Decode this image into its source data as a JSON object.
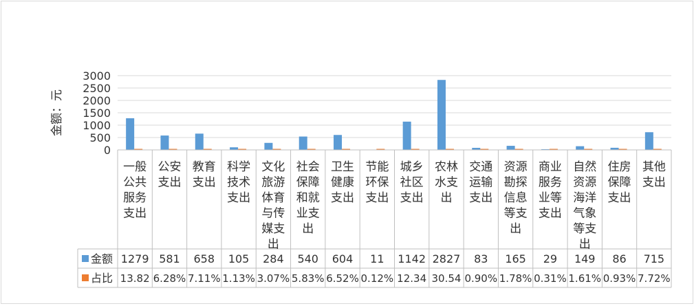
{
  "chart_data": {
    "type": "bar",
    "title": "",
    "xlabel": "",
    "ylabel": "金额：元",
    "ylim": [
      0,
      3000
    ],
    "yticks": [
      0,
      500,
      1000,
      1500,
      2000,
      2500,
      3000
    ],
    "grid": true,
    "legend": "inline-table-left",
    "categories": [
      "一般公共服务支出",
      "公安支出",
      "教育支出",
      "科学技术支出",
      "文化旅游体育与传媒支出",
      "社会保障和就业支出",
      "卫生健康支出",
      "节能环保支出",
      "城乡社区支出",
      "农林水支出",
      "交通运输支出",
      "资源勘探信息等支出",
      "商业服务业等支出",
      "自然资源海洋气象等支出",
      "住房保障支出",
      "其他支出"
    ],
    "category_lines": [
      [
        "一般",
        "公共",
        "服务",
        "支出"
      ],
      [
        "公安",
        "支出"
      ],
      [
        "教育",
        "支出"
      ],
      [
        "科学",
        "技术",
        "支出"
      ],
      [
        "文化",
        "旅游",
        "体育",
        "与传",
        "媒支",
        "出"
      ],
      [
        "社会",
        "保障",
        "和就",
        "业支",
        "出"
      ],
      [
        "卫生",
        "健康",
        "支出"
      ],
      [
        "节能",
        "环保",
        "支出"
      ],
      [
        "城乡",
        "社区",
        "支出"
      ],
      [
        "农林",
        "水支",
        "出"
      ],
      [
        "交通",
        "运输",
        "支出"
      ],
      [
        "资源",
        "勘探",
        "信息",
        "等支",
        "出"
      ],
      [
        "商业",
        "服务",
        "业等",
        "支出"
      ],
      [
        "自然",
        "资源",
        "海洋",
        "气象",
        "等支",
        "出"
      ],
      [
        "住房",
        "保障",
        "支出"
      ],
      [
        "其他",
        "支出"
      ]
    ],
    "series": [
      {
        "name": "金额",
        "color": "#5B9BD5",
        "values": [
          1279,
          581,
          658,
          105,
          284,
          540,
          604,
          11,
          1142,
          2827,
          83,
          165,
          29,
          149,
          86,
          715
        ],
        "labels": [
          "1279",
          "581",
          "658",
          "105",
          "284",
          "540",
          "604",
          "11",
          "1142",
          "2827",
          "83",
          "165",
          "29",
          "149",
          "86",
          "715"
        ]
      },
      {
        "name": "占比",
        "color": "#ED7D31",
        "values": [
          13.82,
          6.28,
          7.11,
          1.13,
          3.07,
          5.83,
          6.52,
          0.12,
          12.34,
          30.54,
          0.9,
          1.78,
          0.31,
          1.61,
          0.93,
          7.72
        ],
        "labels": [
          "13.82",
          "6.28%",
          "7.11%",
          "1.13%",
          "3.07%",
          "5.83%",
          "6.52%",
          "0.12%",
          "12.34",
          "30.54",
          "0.90%",
          "1.78%",
          "0.31%",
          "1.61%",
          "0.93%",
          "7.72%"
        ]
      }
    ]
  }
}
